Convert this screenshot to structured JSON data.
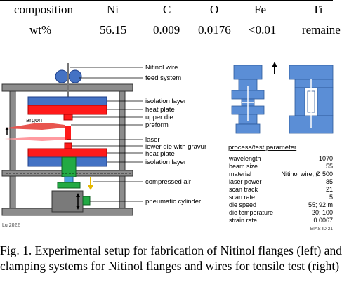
{
  "table": {
    "headers": [
      "composition",
      "Ni",
      "C",
      "O",
      "Fe",
      "Ti"
    ],
    "row": [
      "wt%",
      "56.15",
      "0.009",
      "0.0176",
      "<0.01",
      "remaine"
    ]
  },
  "left_figure": {
    "labels": [
      "Nitinol wire",
      "feed system",
      "isolation layer",
      "heat plate",
      "upper die",
      "preform",
      "laser",
      "lower die with gravur",
      "heat plate",
      "isolation layer",
      "compressed air",
      "pneumatic cylinder"
    ],
    "argon_label": "argon",
    "credit": "Lu 2022"
  },
  "right_figure": {
    "param_title": "process/test parameter",
    "params": [
      {
        "name": "wavelength",
        "value": "1070"
      },
      {
        "name": "beam size",
        "value": "55"
      },
      {
        "name": "material",
        "value": "Nitinol wire, Ø 500"
      },
      {
        "name": "laser power",
        "value": "85"
      },
      {
        "name": "scan track",
        "value": "21"
      },
      {
        "name": "scan rate",
        "value": "5"
      },
      {
        "name": "die speed",
        "value": "55; 92 m"
      },
      {
        "name": "die temperature",
        "value": "20; 100"
      },
      {
        "name": "strain rate",
        "value": "0.0067"
      }
    ],
    "bias_id": "BIAS ID 21"
  },
  "caption": {
    "line1": "Fig. 1. Experimental setup for fabrication of Nitinol flanges (left) and",
    "line2": "clamping systems for Nitinol flanges and wires for tensile test (right)"
  },
  "colors": {
    "blue": "#4472c4",
    "red": "#ff1a1a",
    "gray": "#8c8c8c",
    "green": "#22aa44",
    "clamp_blue": "#5b8ed6"
  }
}
